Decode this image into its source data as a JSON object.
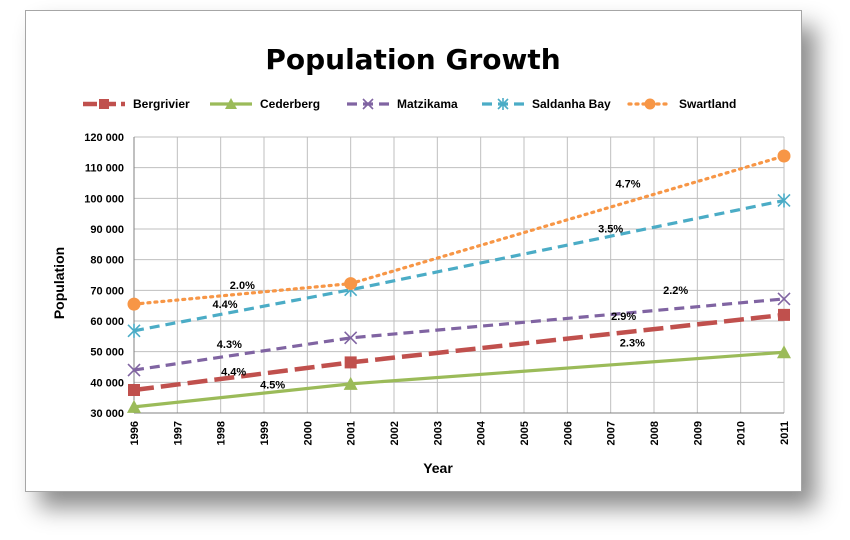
{
  "chart_data": {
    "type": "line",
    "title": "Population Growth",
    "xlabel": "Year",
    "ylabel": "Population",
    "x": [
      1996,
      1997,
      1998,
      1999,
      2000,
      2001,
      2002,
      2003,
      2004,
      2005,
      2006,
      2007,
      2008,
      2009,
      2010,
      2011
    ],
    "ylim": [
      30000,
      120000
    ],
    "y_ticks": [
      30000,
      40000,
      50000,
      60000,
      70000,
      80000,
      90000,
      100000,
      110000,
      120000
    ],
    "y_tick_labels": [
      "30 000",
      "40 000",
      "50 000",
      "60 000",
      "70 000",
      "80 000",
      "90 000",
      "100 000",
      "110 000",
      "120 000"
    ],
    "grid": true,
    "legend_position": "top",
    "series": [
      {
        "name": "Bergrivier",
        "color": "#c0504d",
        "style": "long-dash",
        "marker": "square",
        "points": [
          [
            1996,
            37500
          ],
          [
            2001,
            46500
          ],
          [
            2011,
            62000
          ]
        ]
      },
      {
        "name": "Cederberg",
        "color": "#9bbb59",
        "style": "solid",
        "marker": "triangle",
        "points": [
          [
            1996,
            32000
          ],
          [
            2001,
            39500
          ],
          [
            2011,
            49800
          ]
        ]
      },
      {
        "name": "Matzikama",
        "color": "#8064a2",
        "style": "dash",
        "marker": "x",
        "points": [
          [
            1996,
            44000
          ],
          [
            2001,
            54500
          ],
          [
            2011,
            67200
          ]
        ]
      },
      {
        "name": "Saldanha Bay",
        "color": "#4bacc6",
        "style": "dash",
        "marker": "star",
        "points": [
          [
            1996,
            56800
          ],
          [
            2001,
            70200
          ],
          [
            2011,
            99300
          ]
        ]
      },
      {
        "name": "Swartland",
        "color": "#f79646",
        "style": "dot",
        "marker": "circle",
        "points": [
          [
            1996,
            65500
          ],
          [
            2001,
            72200
          ],
          [
            2011,
            113800
          ]
        ]
      }
    ],
    "annotations": [
      {
        "text": "2.0%",
        "x": 1998.5,
        "y": 70500
      },
      {
        "text": "4.4%",
        "x": 1998.1,
        "y": 64200
      },
      {
        "text": "4.3%",
        "x": 1998.2,
        "y": 51200
      },
      {
        "text": "4.4%",
        "x": 1998.3,
        "y": 42200
      },
      {
        "text": "4.5%",
        "x": 1999.2,
        "y": 38000
      },
      {
        "text": "4.7%",
        "x": 2007.4,
        "y": 103500
      },
      {
        "text": "3.5%",
        "x": 2007.0,
        "y": 88800
      },
      {
        "text": "2.2%",
        "x": 2008.5,
        "y": 68800
      },
      {
        "text": "2.9%",
        "x": 2007.3,
        "y": 60300
      },
      {
        "text": "2.3%",
        "x": 2007.5,
        "y": 51700
      }
    ]
  }
}
